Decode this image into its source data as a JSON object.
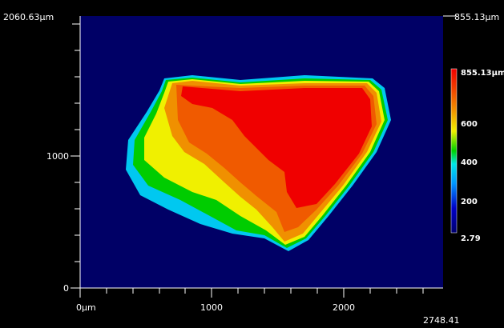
{
  "y_axis": {
    "top": "2060.63µm",
    "labels": [
      "1000",
      "0"
    ]
  },
  "x_axis": {
    "labels": [
      "0µm",
      "1000",
      "2000"
    ],
    "end": "2748.41"
  },
  "corner_label": "855.13µm",
  "colorbar": {
    "labels": [
      "855.13µm",
      "600",
      "400",
      "200",
      "2.79"
    ]
  }
}
